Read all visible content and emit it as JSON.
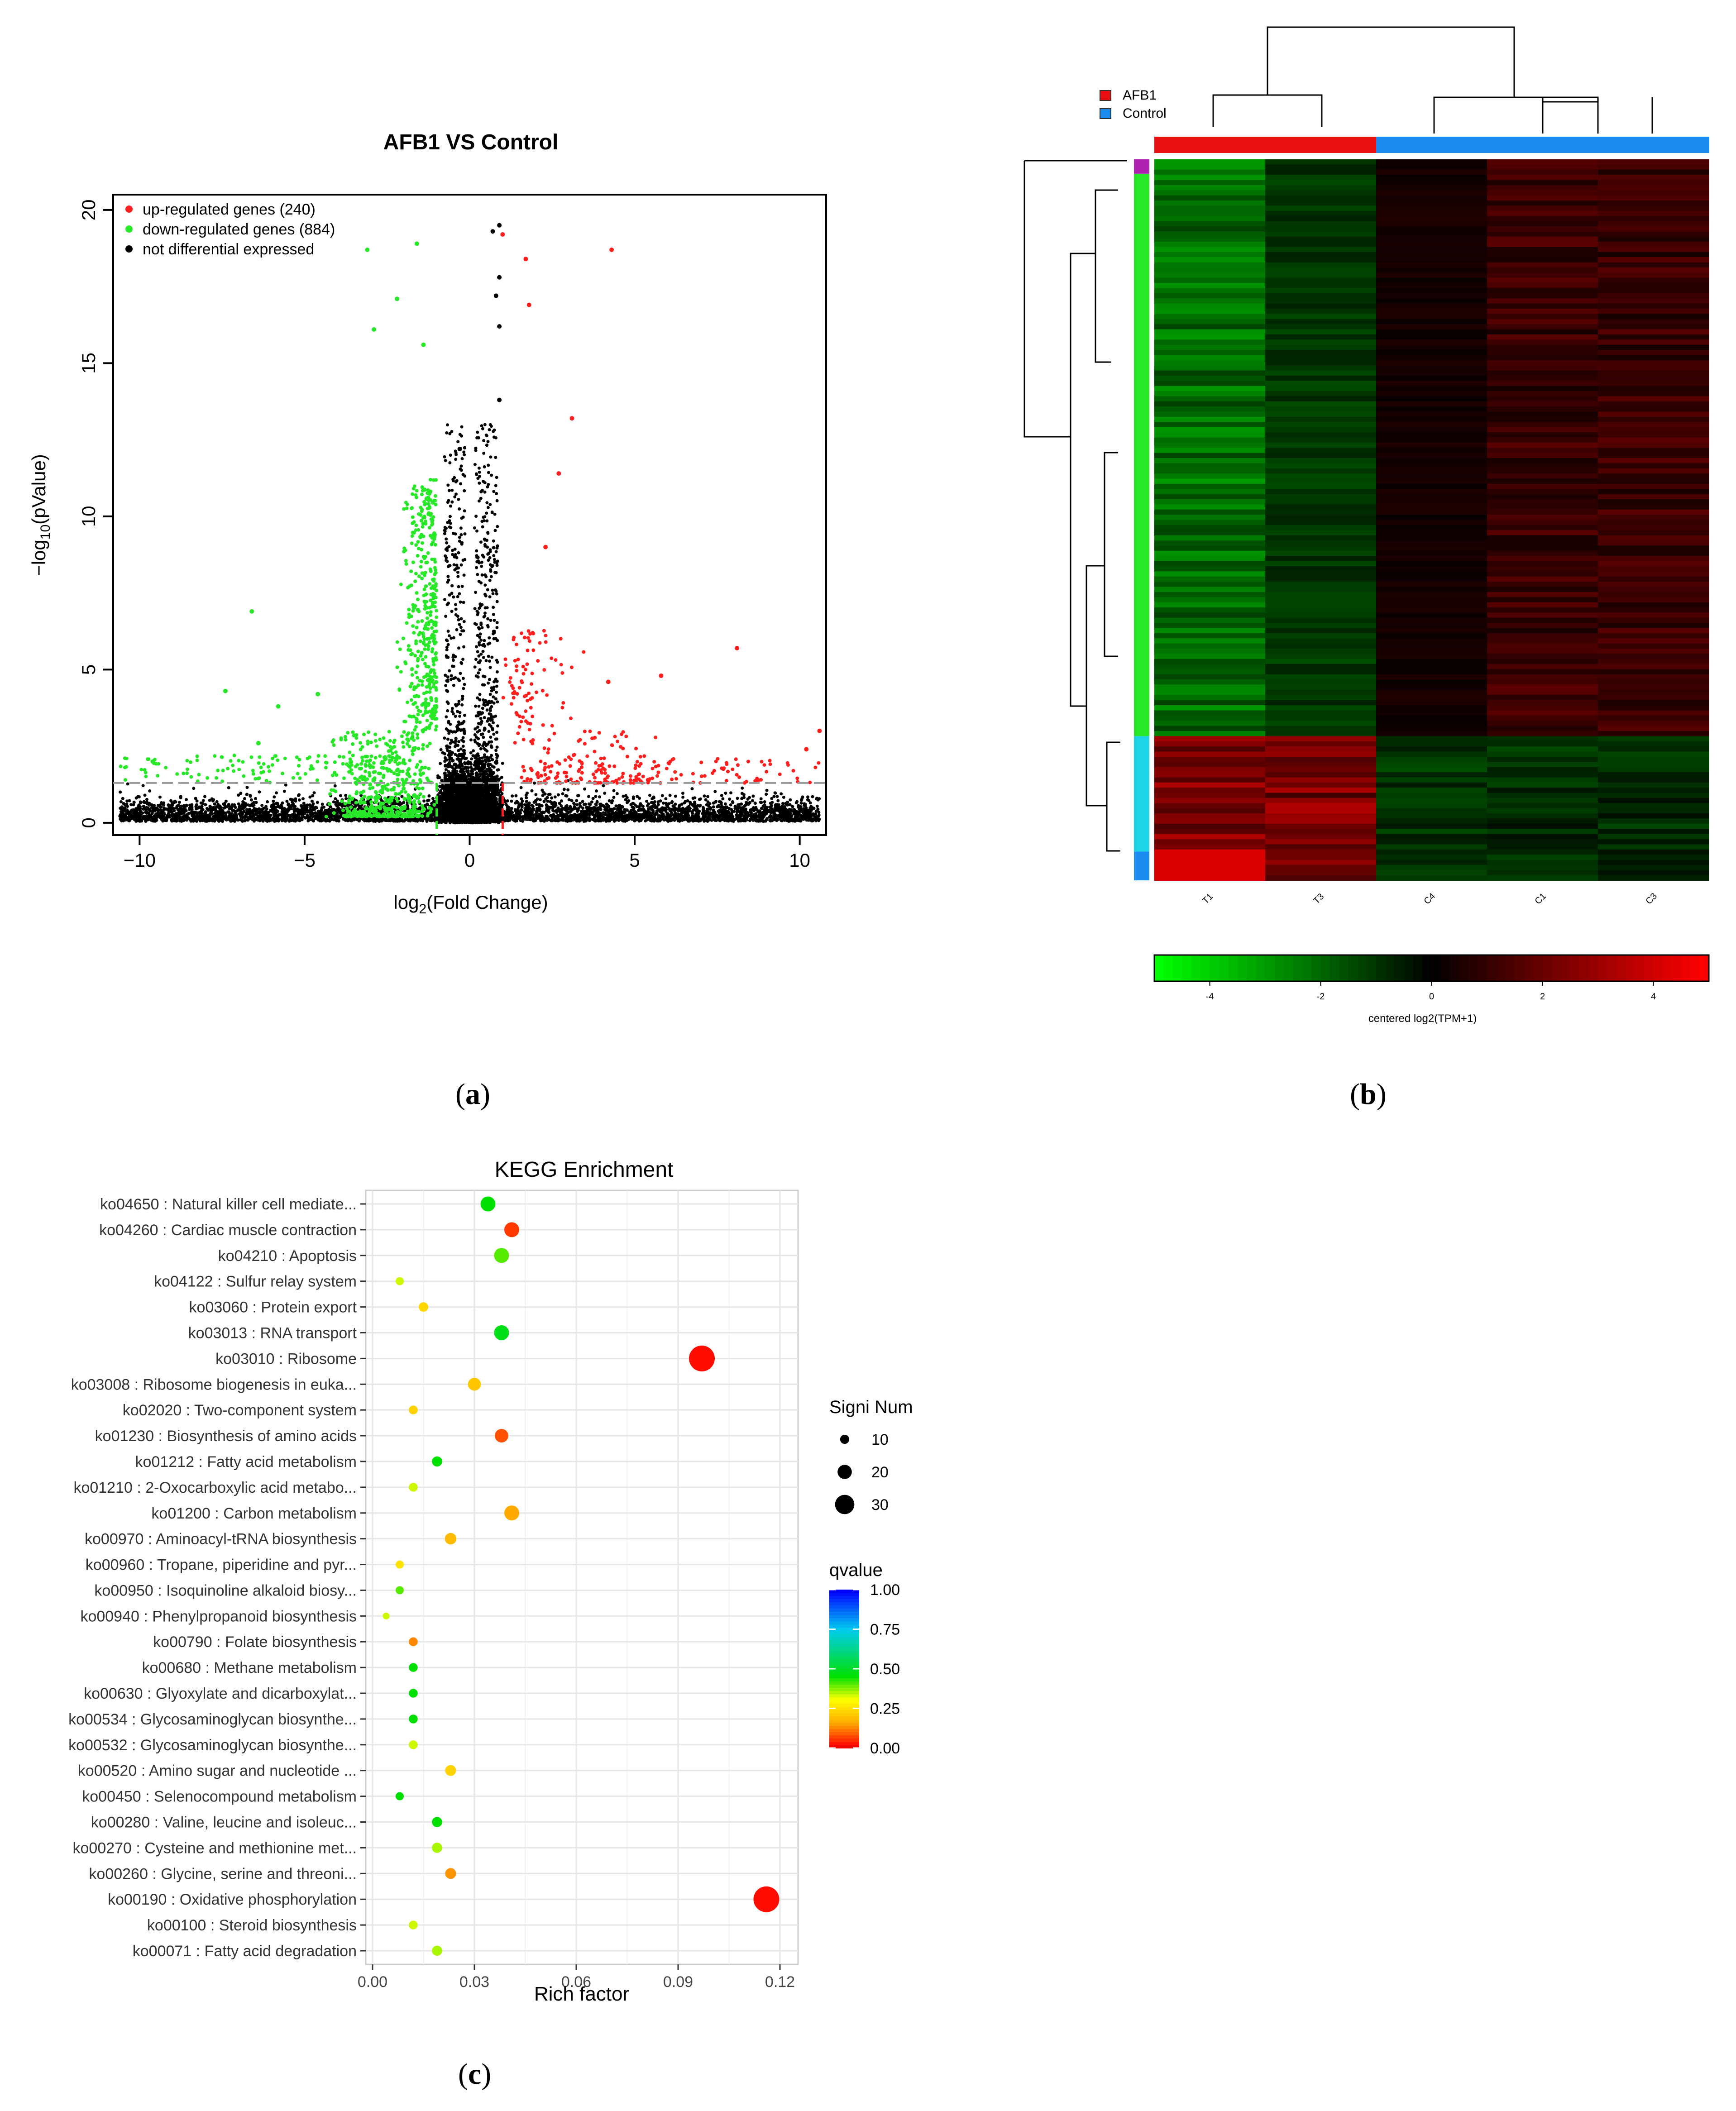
{
  "panels": {
    "a": "a",
    "b": "b",
    "c": "c"
  },
  "colors": {
    "up": "#ff1f1f",
    "down": "#27e827",
    "ns": "#000000",
    "afb1": "#e81010",
    "control": "#1a8cf0",
    "cyan": "#1fd3e6",
    "magenta": "#b020b0"
  },
  "chart_data": [
    {
      "id": "volcano",
      "type": "scatter",
      "title": "AFB1 VS Control",
      "xlabel": "log2(Fold Change)",
      "ylabel": "-log10(pValue)",
      "xlim": [
        -10.8,
        10.8
      ],
      "ylim": [
        -0.4,
        20.5
      ],
      "xticks": [
        -10,
        -5,
        0,
        5,
        10
      ],
      "yticks": [
        0,
        5,
        10,
        15,
        20
      ],
      "thresholds": {
        "fold_change": [
          -1,
          1
        ],
        "pvalue": 1.3
      },
      "legend": [
        {
          "label": "up-regulated genes (240)",
          "color": "#ff1f1f"
        },
        {
          "label": "down-regulated genes (884)",
          "color": "#27e827"
        },
        {
          "label": "not differential expressed",
          "color": "#000000"
        }
      ],
      "series": [
        {
          "name": "up-regulated genes",
          "count": 240,
          "highlight_points": [
            [
              1.0,
              19.2
            ],
            [
              1.7,
              18.4
            ],
            [
              4.3,
              18.7
            ],
            [
              1.8,
              16.9
            ],
            [
              3.1,
              13.2
            ],
            [
              2.7,
              11.4
            ],
            [
              2.3,
              9.0
            ],
            [
              8.1,
              5.7
            ],
            [
              5.8,
              4.8
            ],
            [
              4.2,
              4.6
            ],
            [
              10.6,
              3.0
            ],
            [
              10.2,
              2.4
            ]
          ]
        },
        {
          "name": "down-regulated genes",
          "count": 884,
          "highlight_points": [
            [
              -1.6,
              18.9
            ],
            [
              -3.1,
              18.7
            ],
            [
              -2.2,
              17.1
            ],
            [
              -1.4,
              15.6
            ],
            [
              -2.9,
              16.1
            ],
            [
              -6.6,
              6.9
            ],
            [
              -7.4,
              4.3
            ],
            [
              -5.8,
              3.8
            ],
            [
              -4.6,
              4.2
            ],
            [
              -9.6,
              2.0
            ],
            [
              -6.4,
              2.6
            ]
          ]
        },
        {
          "name": "not differential expressed",
          "highlight_points": [
            [
              0.9,
              19.5
            ],
            [
              0.7,
              19.3
            ],
            [
              0.9,
              17.8
            ],
            [
              0.8,
              17.2
            ],
            [
              0.9,
              16.2
            ],
            [
              -0.3,
              12.2
            ],
            [
              0.9,
              13.8
            ]
          ]
        }
      ]
    },
    {
      "id": "heatmap",
      "type": "heatmap",
      "columns": [
        "T1",
        "T3",
        "C4",
        "C1",
        "C3"
      ],
      "groups": [
        {
          "label": "AFB1",
          "color": "#e81010",
          "columns": [
            "T1",
            "T3"
          ]
        },
        {
          "label": "Control",
          "color": "#1a8cf0",
          "columns": [
            "C4",
            "C1",
            "C3"
          ]
        }
      ],
      "row_clusters": [
        {
          "color": "#b020b0",
          "fraction": 0.02
        },
        {
          "color": "#27e827",
          "fraction": 0.78
        },
        {
          "color": "#1fd3e6",
          "fraction": 0.16
        },
        {
          "color": "#1a8cf0",
          "fraction": 0.04
        }
      ],
      "colorbar": {
        "label": "centered log2(TPM+1)",
        "ticks": [
          -4,
          -2,
          0,
          2,
          4
        ],
        "tick_labels": [
          "-4",
          "-2",
          "0",
          "2",
          "4"
        ],
        "range": [
          -5,
          5
        ]
      }
    },
    {
      "id": "kegg",
      "type": "scatter",
      "title": "KEGG Enrichment",
      "xlabel": "Rich factor",
      "xlim": [
        0,
        0.12
      ],
      "xticks": [
        0.0,
        0.03,
        0.06,
        0.09,
        0.12
      ],
      "xtick_labels": [
        "0.00",
        "0.03",
        "0.06",
        "0.09",
        "0.12"
      ],
      "size_legend": {
        "title": "Signi Num",
        "values": [
          10,
          20,
          30
        ]
      },
      "color_legend": {
        "title": "qvalue",
        "ticks": [
          "1.00",
          "0.75",
          "0.50",
          "0.25",
          "0.00"
        ]
      },
      "points": [
        {
          "term": "ko04650 : Natural killer cell mediate...",
          "rich": 0.034,
          "num": 14,
          "q": 0.45
        },
        {
          "term": "ko04260 : Cardiac muscle contraction",
          "rich": 0.041,
          "num": 14,
          "q": 0.05
        },
        {
          "term": "ko04210 : Apoptosis",
          "rich": 0.038,
          "num": 14,
          "q": 0.4
        },
        {
          "term": "ko04122 : Sulfur relay system",
          "rich": 0.008,
          "num": 4,
          "q": 0.33
        },
        {
          "term": "ko03060 : Protein export",
          "rich": 0.015,
          "num": 6,
          "q": 0.23
        },
        {
          "term": "ko03013 : RNA transport",
          "rich": 0.038,
          "num": 14,
          "q": 0.48
        },
        {
          "term": "ko03010 : Ribosome",
          "rich": 0.097,
          "num": 30,
          "q": 0.01
        },
        {
          "term": "ko03008 : Ribosome biogenesis in euka...",
          "rich": 0.03,
          "num": 11,
          "q": 0.2
        },
        {
          "term": "ko02020 : Two-component system",
          "rich": 0.012,
          "num": 5,
          "q": 0.22
        },
        {
          "term": "ko01230 : Biosynthesis of amino acids",
          "rich": 0.038,
          "num": 12,
          "q": 0.07
        },
        {
          "term": "ko01212 : Fatty acid metabolism",
          "rich": 0.019,
          "num": 7,
          "q": 0.45
        },
        {
          "term": "ko01210 : 2-Oxocarboxylic acid metabo...",
          "rich": 0.012,
          "num": 5,
          "q": 0.33
        },
        {
          "term": "ko01200 : Carbon metabolism",
          "rich": 0.041,
          "num": 14,
          "q": 0.15
        },
        {
          "term": "ko00970 : Aminoacyl-tRNA biosynthesis",
          "rich": 0.023,
          "num": 9,
          "q": 0.18
        },
        {
          "term": "ko00960 : Tropane, piperidine and pyr...",
          "rich": 0.008,
          "num": 4,
          "q": 0.25
        },
        {
          "term": "ko00950 : Isoquinoline alkaloid biosy...",
          "rich": 0.008,
          "num": 4,
          "q": 0.4
        },
        {
          "term": "ko00940 : Phenylpropanoid biosynthesis",
          "rich": 0.004,
          "num": 2,
          "q": 0.33
        },
        {
          "term": "ko00790 : Folate biosynthesis",
          "rich": 0.012,
          "num": 5,
          "q": 0.12
        },
        {
          "term": "ko00680 : Methane metabolism",
          "rich": 0.012,
          "num": 5,
          "q": 0.45
        },
        {
          "term": "ko00630 : Glyoxylate and dicarboxylat...",
          "rich": 0.012,
          "num": 5,
          "q": 0.45
        },
        {
          "term": "ko00534 : Glycosaminoglycan biosynthe...",
          "rich": 0.012,
          "num": 5,
          "q": 0.45
        },
        {
          "term": "ko00532 : Glycosaminoglycan biosynthe...",
          "rich": 0.012,
          "num": 5,
          "q": 0.33
        },
        {
          "term": "ko00520 : Amino sugar and nucleotide ...",
          "rich": 0.023,
          "num": 8,
          "q": 0.22
        },
        {
          "term": "ko00450 : Selenocompound metabolism",
          "rich": 0.008,
          "num": 4,
          "q": 0.45
        },
        {
          "term": "ko00280 : Valine, leucine and isoleuc...",
          "rich": 0.019,
          "num": 7,
          "q": 0.45
        },
        {
          "term": "ko00270 : Cysteine and methionine met...",
          "rich": 0.019,
          "num": 7,
          "q": 0.35
        },
        {
          "term": "ko00260 : Glycine, serine and threoni...",
          "rich": 0.023,
          "num": 8,
          "q": 0.13
        },
        {
          "term": "ko00190 : Oxidative phosphorylation",
          "rich": 0.116,
          "num": 30,
          "q": 0.01
        },
        {
          "term": "ko00100 : Steroid biosynthesis",
          "rich": 0.012,
          "num": 5,
          "q": 0.33
        },
        {
          "term": "ko00071 : Fatty acid degradation",
          "rich": 0.019,
          "num": 7,
          "q": 0.35
        }
      ]
    }
  ]
}
